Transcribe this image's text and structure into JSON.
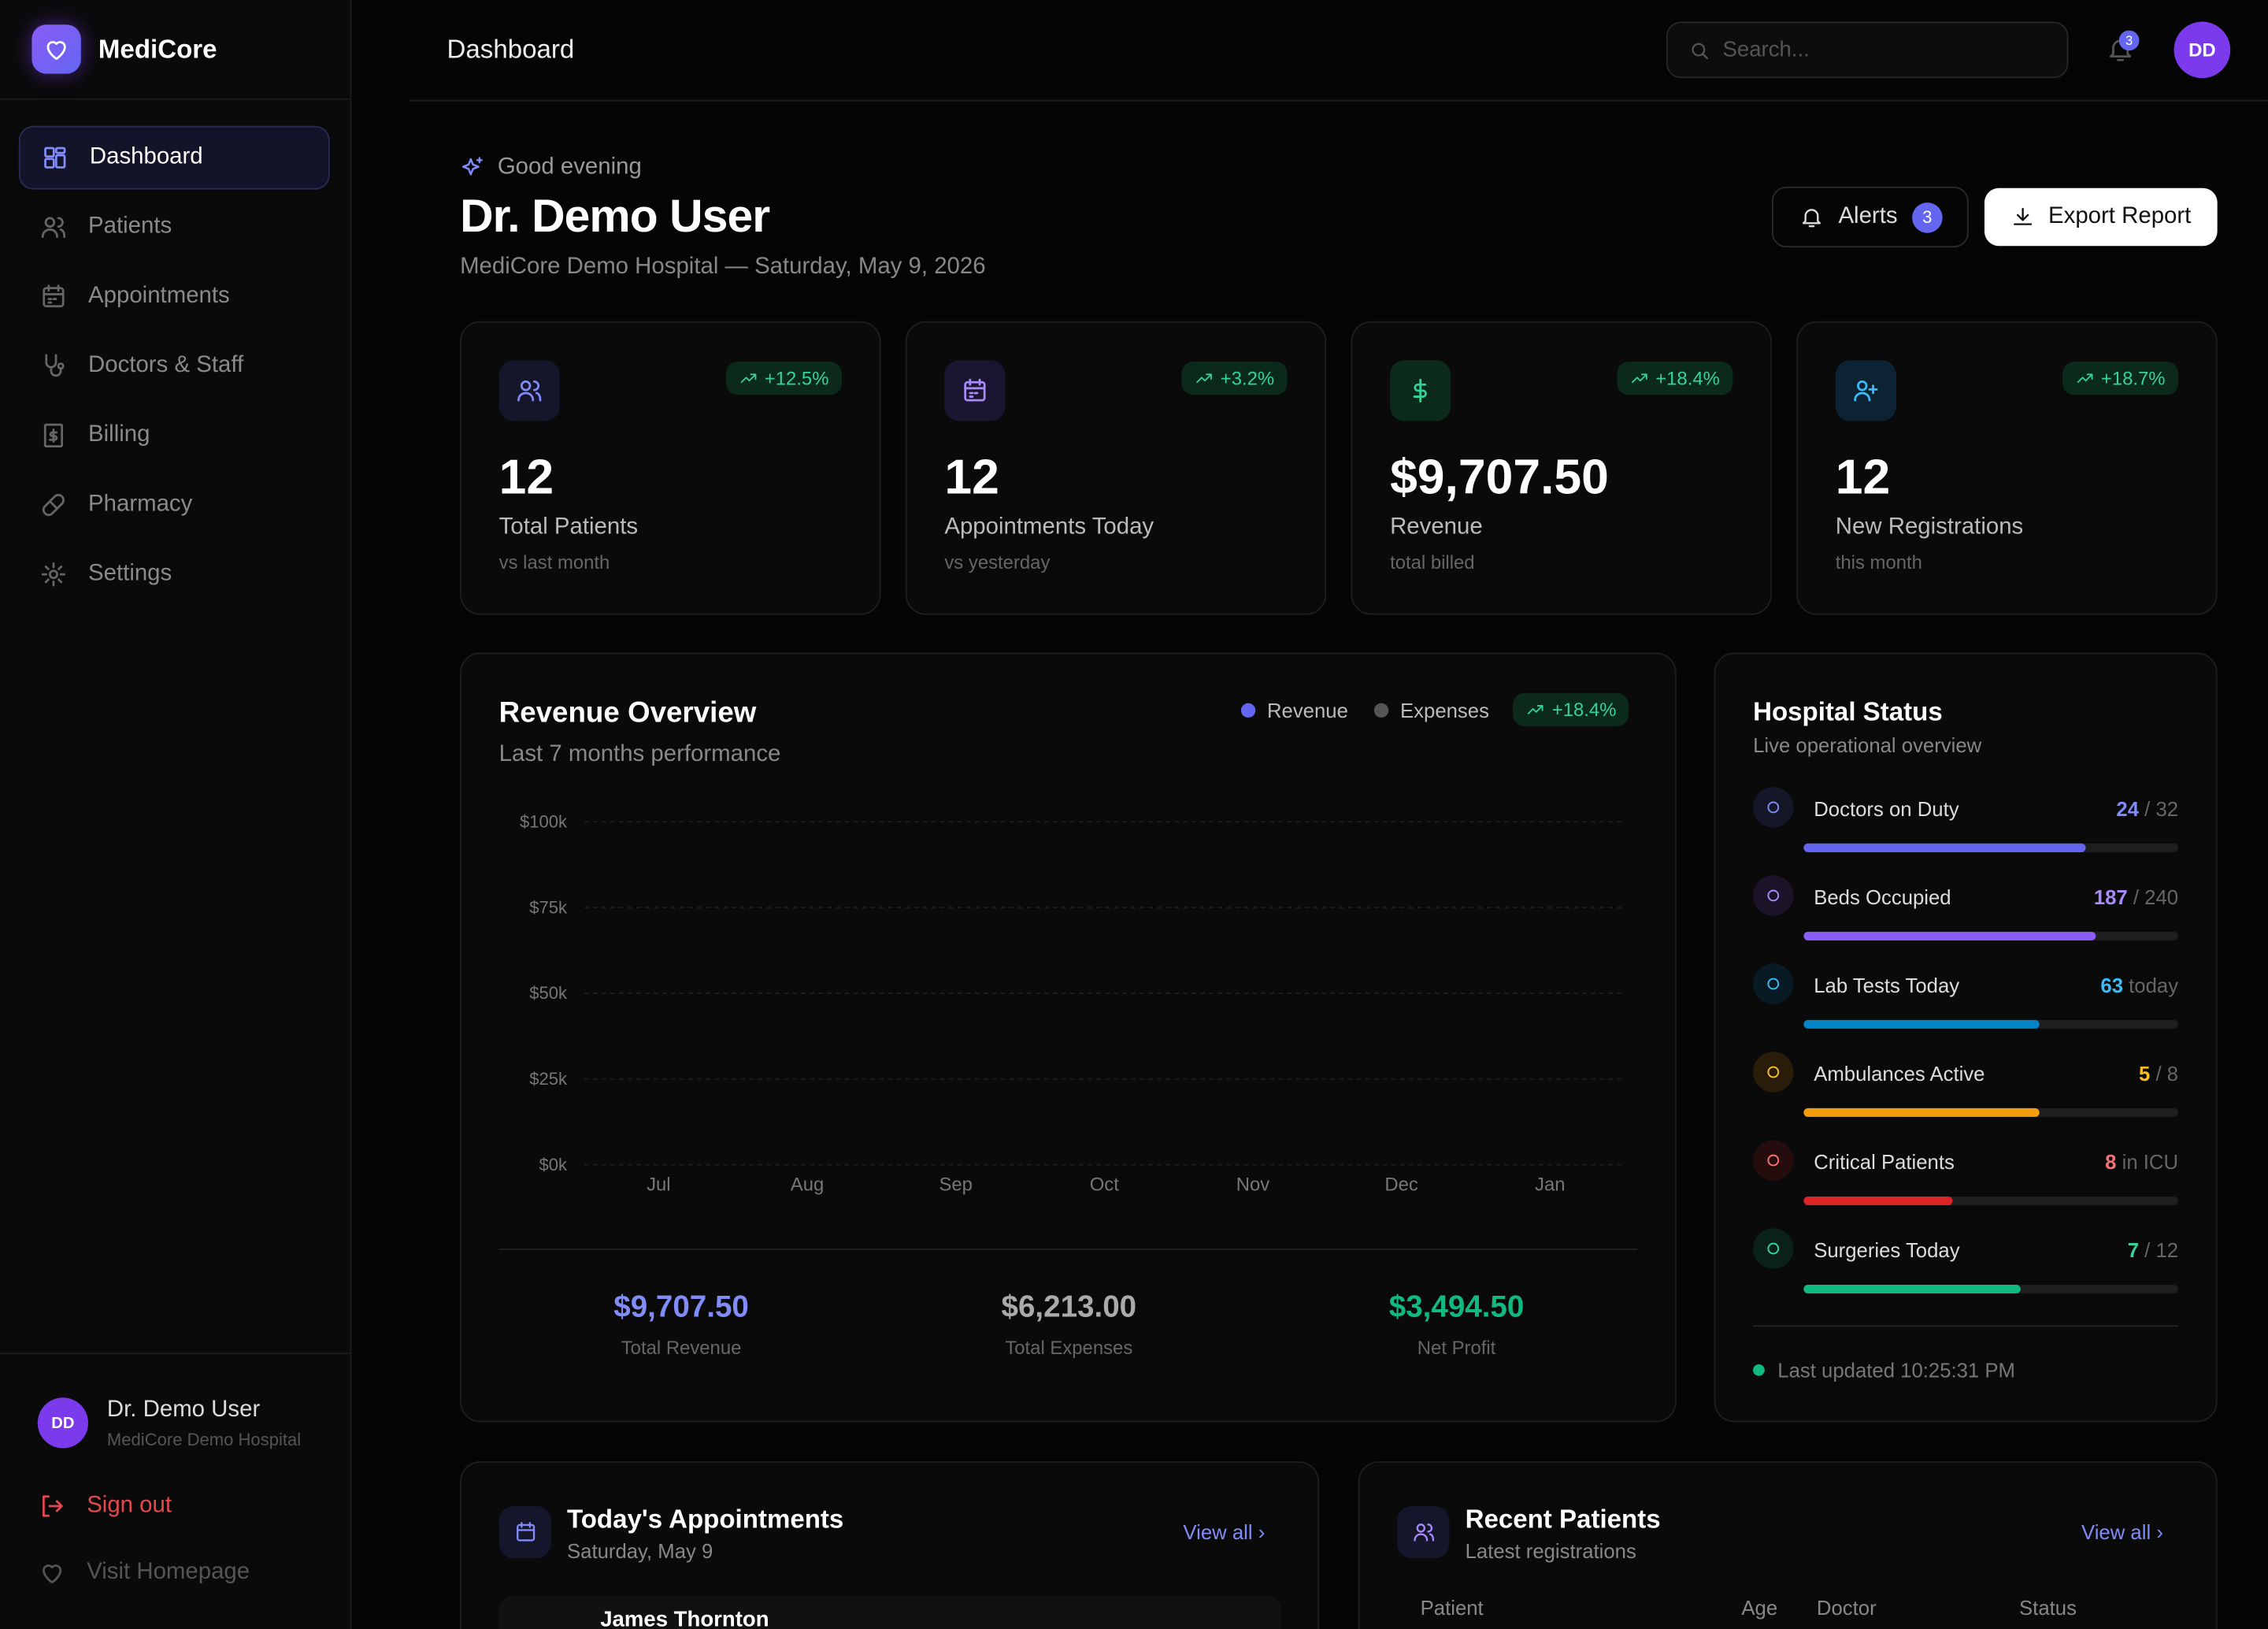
{
  "sidebar": {
    "brand": "MediCore",
    "nav": [
      "Dashboard",
      "Patients",
      "Appointments",
      "Doctors & Staff",
      "Billing",
      "Pharmacy",
      "Settings"
    ],
    "user": {
      "initials": "DD",
      "name": "Dr. Demo User",
      "hospital": "MediCore Demo Hospital"
    },
    "sign_out": "Sign out",
    "visit_homepage": "Visit Homepage"
  },
  "topbar": {
    "title": "Dashboard",
    "search_placeholder": "Search...",
    "notifications": "3",
    "avatar": "DD"
  },
  "header": {
    "greeting": "Good evening",
    "title": "Dr. Demo User",
    "subtitle": "MediCore Demo Hospital — Saturday, May 9, 2026",
    "alerts": "Alerts",
    "alerts_count": "3",
    "export": "Export Report"
  },
  "stats": [
    {
      "value": "12",
      "label": "Total Patients",
      "note": "vs last month",
      "change": "+12.5%"
    },
    {
      "value": "12",
      "label": "Appointments Today",
      "note": "vs yesterday",
      "change": "+3.2%"
    },
    {
      "value": "$9,707.50",
      "label": "Revenue",
      "note": "total billed",
      "change": "+18.4%"
    },
    {
      "value": "12",
      "label": "New Registrations",
      "note": "this month",
      "change": "+18.7%"
    }
  ],
  "revenue": {
    "title": "Revenue Overview",
    "subtitle": "Last 7 months performance",
    "legend": [
      "Revenue",
      "Expenses"
    ],
    "change": "+18.4%",
    "yticks": [
      {
        "value": 0,
        "label": "$0k"
      },
      {
        "value": 25000,
        "label": "$25k"
      },
      {
        "value": 50000,
        "label": "$50k"
      },
      {
        "value": 75000,
        "label": "$75k"
      },
      {
        "value": 100000,
        "label": "$100k"
      }
    ],
    "categories": [
      "Jul",
      "Aug",
      "Sep",
      "Oct",
      "Nov",
      "Dec",
      "Jan"
    ],
    "totals": [
      {
        "value": "$9,707.50",
        "label": "Total Revenue"
      },
      {
        "value": "$6,213.00",
        "label": "Total Expenses"
      },
      {
        "value": "$3,494.50",
        "label": "Net Profit"
      }
    ]
  },
  "status": {
    "title": "Hospital Status",
    "subtitle": "Live operational overview",
    "items": [
      {
        "label": "Doctors on Duty",
        "value": "24",
        "suffix": "/ 32"
      },
      {
        "label": "Beds Occupied",
        "value": "187",
        "suffix": "/ 240"
      },
      {
        "label": "Lab Tests Today",
        "value": "63",
        "suffix": "today"
      },
      {
        "label": "Ambulances Active",
        "value": "5",
        "suffix": "/ 8"
      },
      {
        "label": "Critical Patients",
        "value": "8",
        "suffix": "in ICU"
      },
      {
        "label": "Surgeries Today",
        "value": "7",
        "suffix": "/ 12"
      }
    ],
    "updated": "Last updated 10:25:31 PM"
  },
  "appointments": {
    "title": "Today's Appointments",
    "subtitle": "Saturday, May 9",
    "view_all": "View all",
    "first_patient": "James Thornton"
  },
  "patients": {
    "title": "Recent Patients",
    "subtitle": "Latest registrations",
    "view_all": "View all",
    "columns": [
      "Patient",
      "Age",
      "Doctor",
      "Status"
    ]
  }
}
